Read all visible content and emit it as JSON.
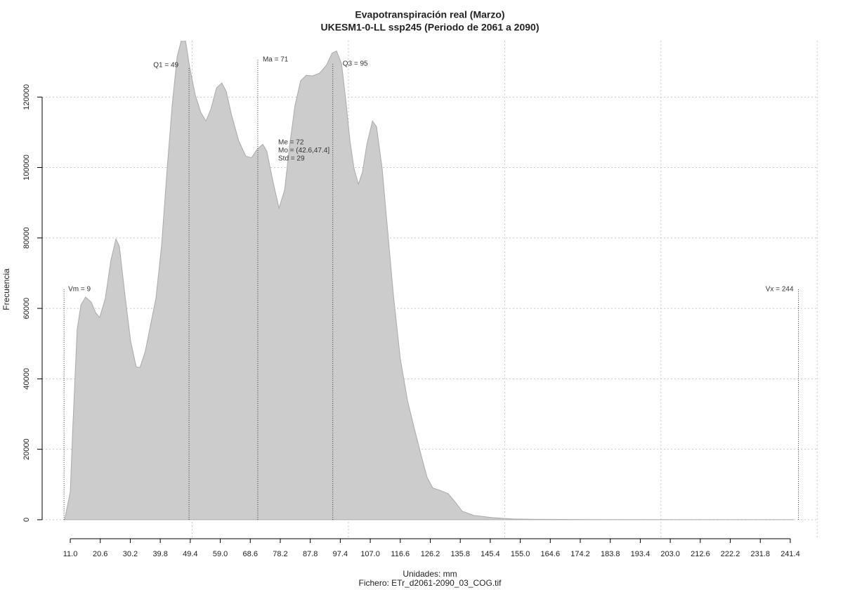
{
  "chart_data": {
    "type": "area",
    "title": "Evapotranspiración real (Marzo)",
    "subtitle": "UKESM1-0-LL ssp245 (Periodo de 2061 a 2090)",
    "xlabel": "Unidades: mm",
    "caption": "Fichero: ETr_d2061-2090_03_COG.tif",
    "ylabel": "Frecuencia",
    "x": [
      9.2,
      11,
      11.9,
      13.2,
      14.4,
      15.9,
      17.7,
      19.1,
      20.4,
      22.2,
      24.0,
      25.6,
      26.7,
      28.5,
      30.3,
      32.1,
      33.3,
      35.0,
      36.8,
      38.4,
      40.2,
      42.0,
      43.6,
      45.2,
      46.5,
      47.9,
      49.2,
      51.0,
      52.8,
      54.4,
      56.0,
      57.8,
      59.5,
      60.9,
      62.7,
      64.9,
      67.2,
      69.0,
      70.8,
      72.6,
      73.9,
      75.7,
      77.8,
      79.6,
      81.1,
      82.9,
      84.7,
      86.5,
      88.5,
      90.8,
      93.0,
      94.8,
      96.2,
      97.8,
      99.1,
      100.5,
      101.8,
      103.2,
      104.5,
      105.9,
      107.7,
      109.0,
      110.8,
      112.6,
      114.4,
      116.6,
      118.9,
      121.1,
      123.4,
      125.2,
      127.0,
      129.2,
      131.9,
      134.2,
      136.4,
      140.2,
      145.9,
      152.6,
      161.6,
      179.6,
      242.5
    ],
    "series": [
      {
        "name": "Frecuencia",
        "color": "#cccccc",
        "values": [
          0,
          8000,
          28000,
          54000,
          61000,
          63200,
          61800,
          58800,
          57400,
          62800,
          73700,
          79700,
          77700,
          63800,
          50800,
          43400,
          43200,
          47800,
          55800,
          62800,
          77700,
          99700,
          117600,
          131500,
          136000,
          136000,
          128500,
          120600,
          115600,
          113200,
          116600,
          122600,
          124000,
          121600,
          114600,
          107600,
          103200,
          102800,
          105200,
          106600,
          104600,
          96700,
          88500,
          93700,
          105600,
          117600,
          124600,
          126200,
          126000,
          126800,
          129100,
          132500,
          133100,
          129500,
          119600,
          107600,
          99700,
          95300,
          98700,
          106600,
          113200,
          111600,
          99700,
          81700,
          63800,
          45800,
          33900,
          25900,
          17900,
          12000,
          9000,
          8400,
          7400,
          5000,
          2400,
          1200,
          600,
          200,
          100,
          30,
          0
        ]
      }
    ],
    "xlim": [
      2.0,
      250.4
    ],
    "ylim": [
      -5400,
      136000
    ],
    "xticks": [
      {
        "value": 11.0,
        "label": "11.0"
      },
      20.6,
      30.2,
      39.8,
      49.4,
      {
        "value": 59.0,
        "label": "59.0"
      },
      68.6,
      78.2,
      87.8,
      97.4,
      {
        "value": 107.0,
        "label": "107.0"
      },
      116.6,
      126.2,
      135.8,
      145.4,
      {
        "value": 155.0,
        "label": "155.0"
      },
      164.6,
      174.2,
      183.8,
      193.4,
      {
        "value": 203.0,
        "label": "203.0"
      },
      212.6,
      222.2,
      231.8,
      241.4
    ],
    "yticks": [
      0,
      20000,
      40000,
      60000,
      80000,
      100000,
      120000
    ],
    "xgrid": [
      50,
      100,
      150,
      200,
      250
    ],
    "grid": true,
    "annotations": [
      {
        "value": 9,
        "label": "Vm = 9"
      },
      {
        "value": 49,
        "label": "Q1 = 49"
      },
      {
        "value": 71,
        "label": "Ma = 71"
      },
      {
        "value": 95,
        "label": "Q3 = 95"
      },
      {
        "value": 244,
        "label": "Vx = 244"
      }
    ],
    "stats": [
      "Me = 72",
      "Mo = (42.6,47.4]",
      "Std = 29"
    ]
  }
}
